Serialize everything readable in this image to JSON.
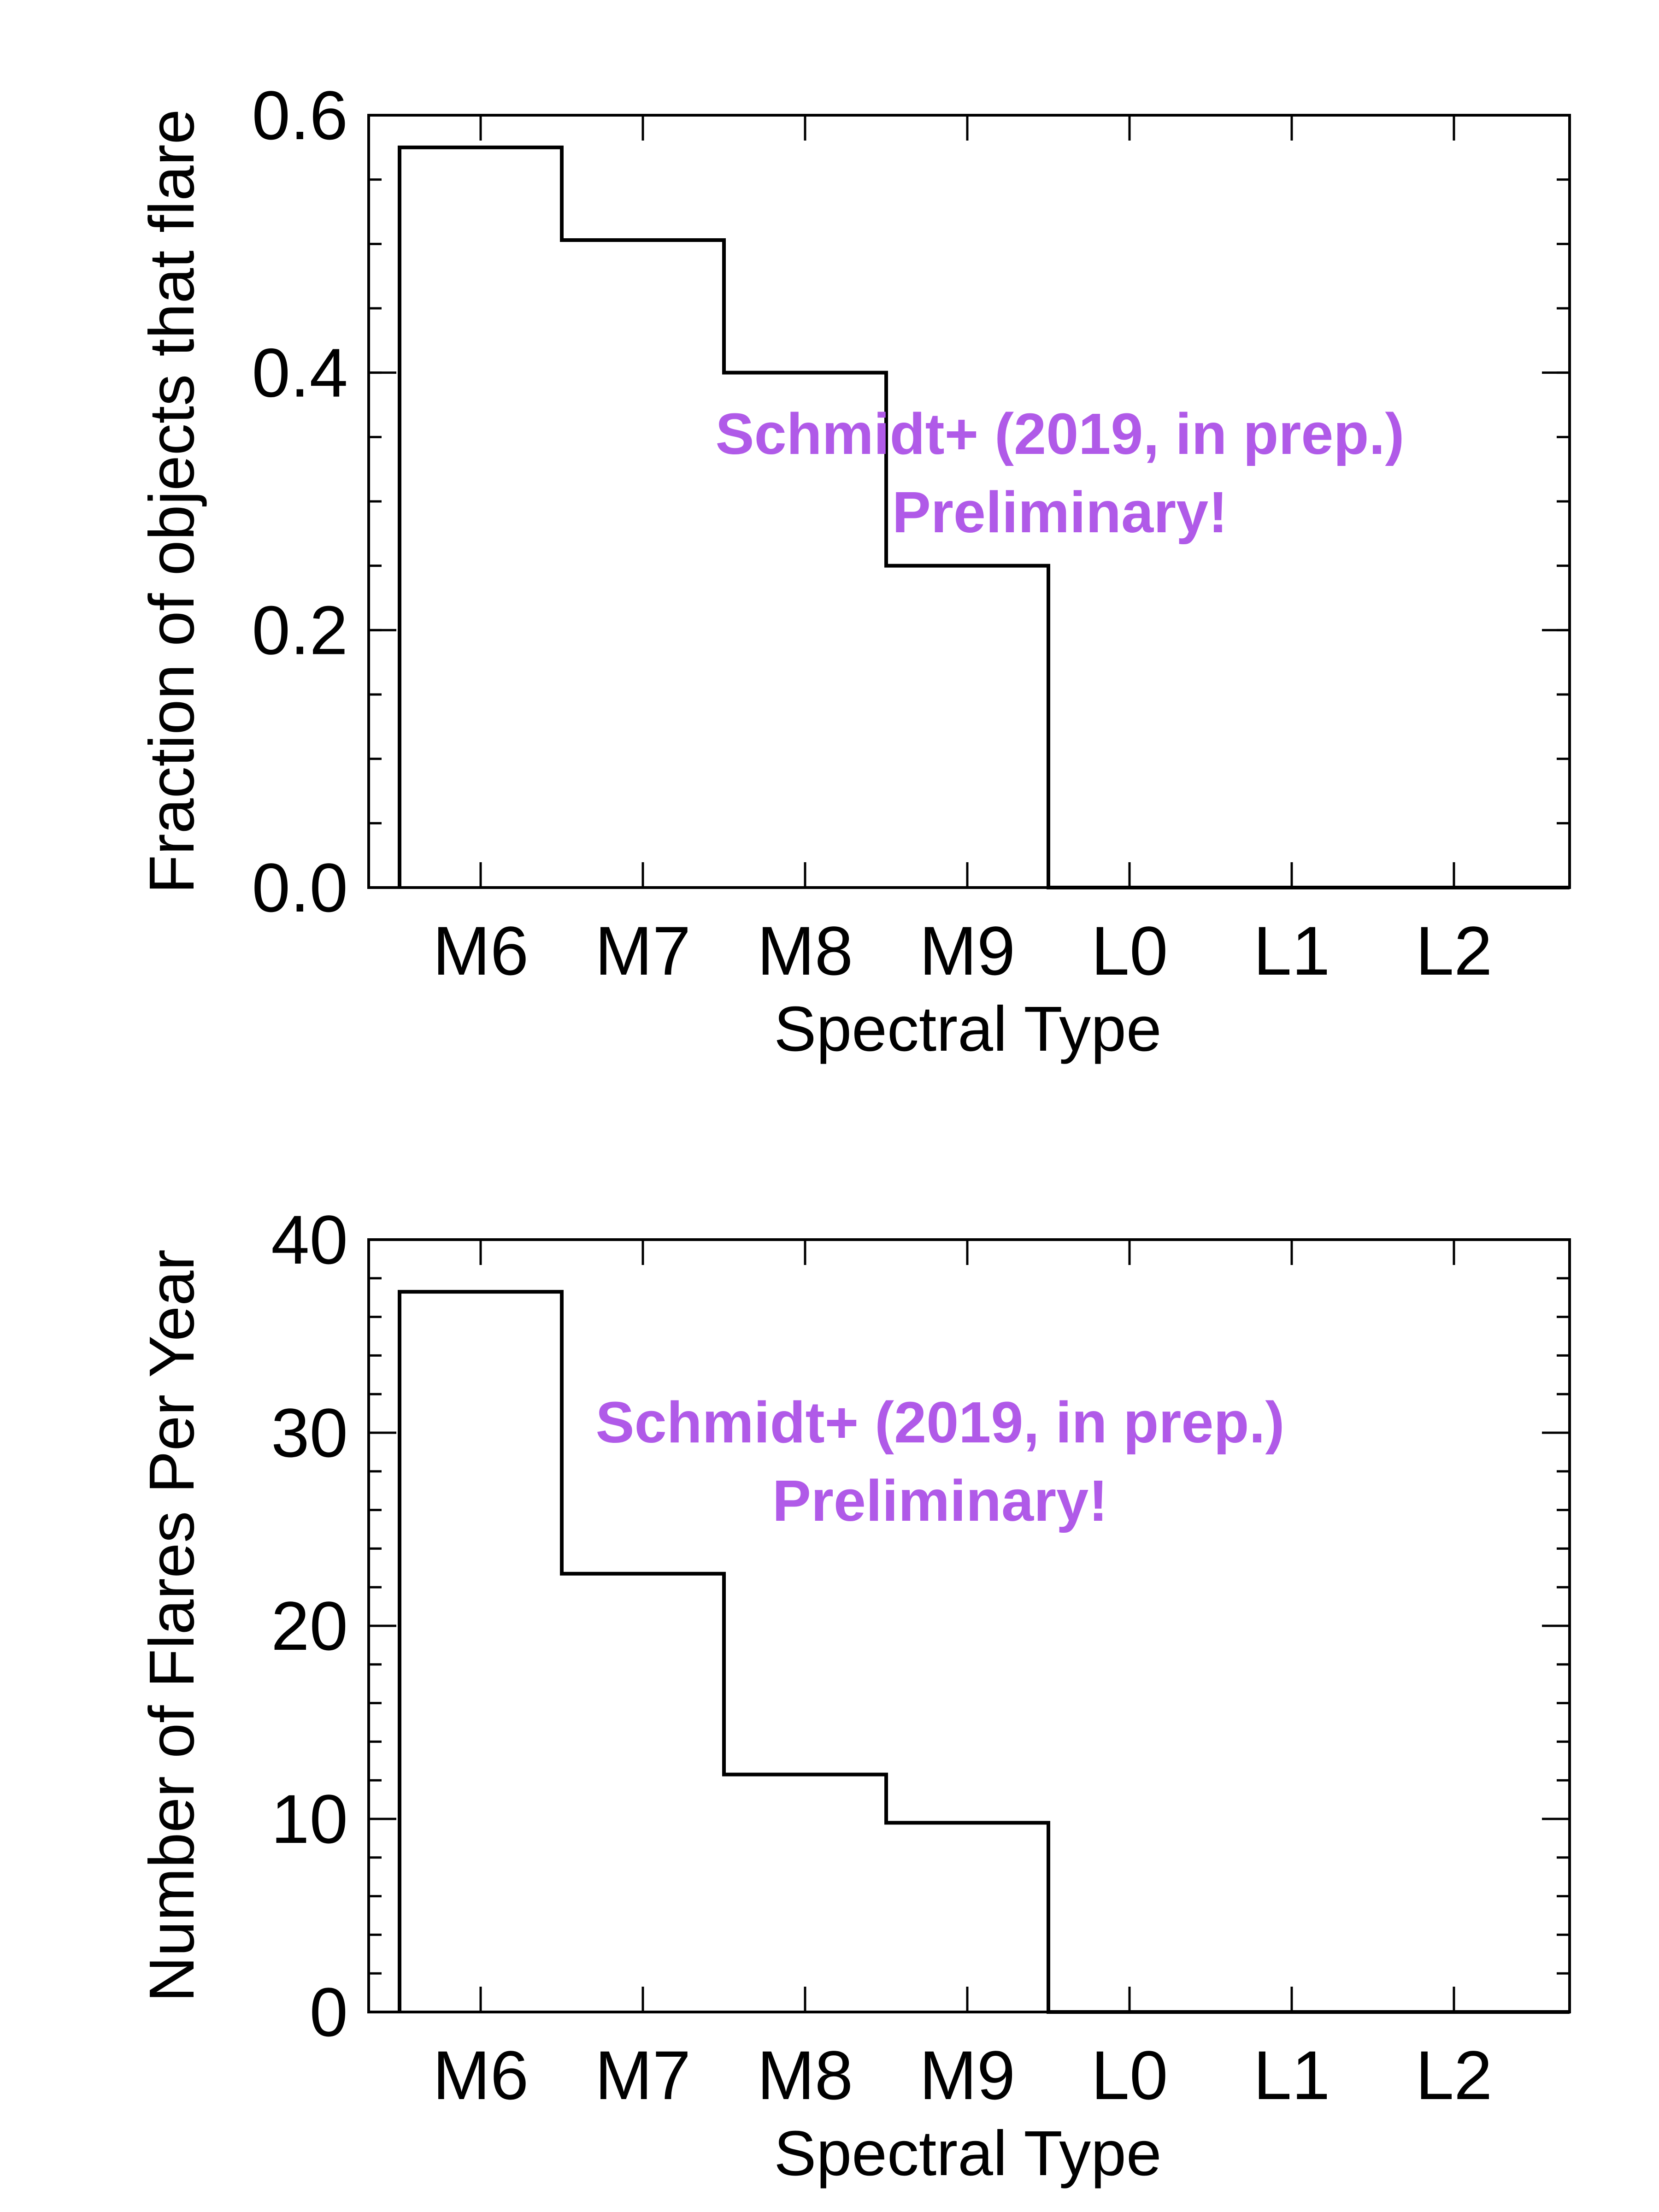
{
  "chart_data": [
    {
      "type": "bar",
      "style": "step-histogram",
      "categories": [
        "M6",
        "M7",
        "M8",
        "M9",
        "L0",
        "L1",
        "L2"
      ],
      "values": [
        0.575,
        0.503,
        0.4,
        0.25,
        0.0,
        0.0,
        0.0
      ],
      "xlabel": "Spectral Type",
      "ylabel": "Fraction of objects that flare",
      "ylim": [
        0,
        0.6
      ],
      "yticks": [
        "0.0",
        "0.2",
        "0.4",
        "0.6"
      ],
      "ytick_values": [
        0,
        0.2,
        0.4,
        0.6
      ],
      "minor_ytick_step": 0.05,
      "annotation": [
        "Schmidt+ (2019, in prep.)",
        "Preliminary!"
      ],
      "annotation_color": "#b05ae8",
      "grid": false
    },
    {
      "type": "bar",
      "style": "step-histogram",
      "categories": [
        "M6",
        "M7",
        "M8",
        "M9",
        "L0",
        "L1",
        "L2"
      ],
      "values": [
        37.3,
        22.7,
        12.3,
        9.8,
        0.0,
        0.0,
        0.0
      ],
      "xlabel": "Spectral Type",
      "ylabel": "Number of Flares Per Year",
      "ylim": [
        0,
        40
      ],
      "yticks": [
        "0",
        "10",
        "20",
        "30",
        "40"
      ],
      "ytick_values": [
        0,
        10,
        20,
        30,
        40
      ],
      "minor_ytick_step": 2,
      "annotation": [
        "Schmidt+ (2019, in prep.)",
        "Preliminary!"
      ],
      "annotation_color": "#b05ae8",
      "grid": false
    }
  ]
}
